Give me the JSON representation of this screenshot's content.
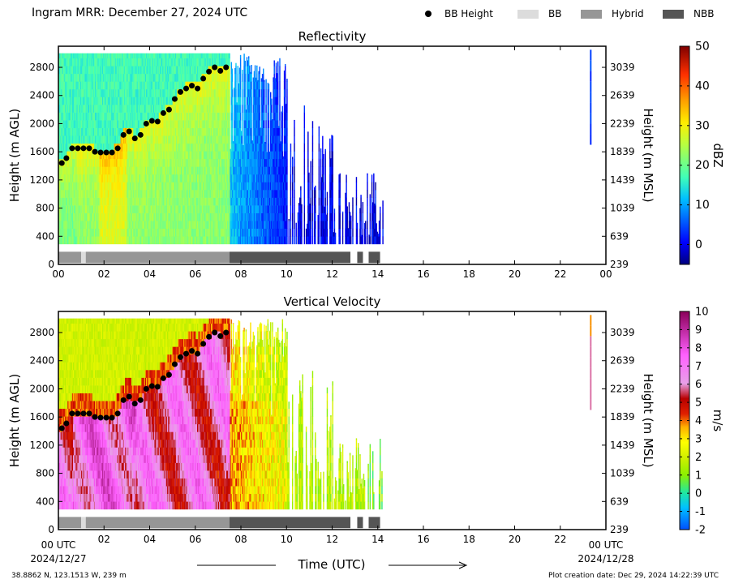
{
  "header": {
    "title": "Ingram MRR:  December 27, 2024 UTC"
  },
  "legend": [
    {
      "label": "BB Height",
      "kind": "dot",
      "color": "#000000"
    },
    {
      "label": "BB",
      "kind": "box",
      "color": "#dcdcdc"
    },
    {
      "label": "Hybrid",
      "kind": "box",
      "color": "#969696"
    },
    {
      "label": "NBB",
      "kind": "box",
      "color": "#555555"
    }
  ],
  "footer": {
    "location": "38.8862 N, 123.1513 W, 239 m",
    "created": "Plot creation date: Dec 29, 2024 14:22:39 UTC",
    "time_axis_label": "Time (UTC)",
    "start_label": "00 UTC",
    "start_date": "2024/12/27",
    "end_label": "00 UTC",
    "end_date": "2024/12/28"
  },
  "colors": {
    "bb": "#dcdcdc",
    "hybrid": "#969696",
    "nbb": "#555555"
  },
  "chart_data": [
    {
      "type": "heatmap",
      "title": "Reflectivity",
      "ylabel": "Height (m AGL)",
      "y2label": "Height (m MSL)",
      "xlim": [
        0,
        24
      ],
      "ylim": [
        0,
        3100
      ],
      "x_ticks": [
        "00",
        "02",
        "04",
        "06",
        "08",
        "10",
        "12",
        "14",
        "16",
        "18",
        "20",
        "22",
        "00"
      ],
      "y_ticks": [
        0,
        400,
        800,
        1200,
        1600,
        2000,
        2400,
        2800
      ],
      "y2_ticks": [
        "239",
        "639",
        "1039",
        "1439",
        "1839",
        "2239",
        "2639",
        "3039"
      ],
      "colorbar": {
        "label": "dBZ",
        "min": -5,
        "max": 50,
        "ticks": [
          0,
          10,
          20,
          30,
          40,
          50
        ]
      },
      "bb_height": {
        "x": [
          0.15,
          0.35,
          0.6,
          0.85,
          1.1,
          1.35,
          1.6,
          1.85,
          2.1,
          2.35,
          2.6,
          2.85,
          3.1,
          3.35,
          3.6,
          3.85,
          4.1,
          4.35,
          4.6,
          4.85,
          5.1,
          5.35,
          5.6,
          5.85,
          6.1,
          6.35,
          6.6,
          6.85,
          7.1,
          7.35
        ],
        "y": [
          1440,
          1510,
          1650,
          1650,
          1650,
          1650,
          1600,
          1590,
          1590,
          1590,
          1650,
          1840,
          1890,
          1790,
          1840,
          2000,
          2040,
          2030,
          2150,
          2200,
          2350,
          2450,
          2500,
          2540,
          2500,
          2640,
          2740,
          2800,
          2750,
          2800
        ]
      },
      "bb_type_segments": [
        {
          "start": 0,
          "end": 1.0,
          "type": "Hybrid"
        },
        {
          "start": 1.0,
          "end": 1.2,
          "type": "BB"
        },
        {
          "start": 1.2,
          "end": 7.5,
          "type": "Hybrid"
        },
        {
          "start": 7.5,
          "end": 12.8,
          "type": "NBB"
        },
        {
          "start": 13.1,
          "end": 13.35,
          "type": "NBB"
        },
        {
          "start": 13.6,
          "end": 14.1,
          "type": "NBB"
        }
      ]
    },
    {
      "type": "heatmap",
      "title": "Vertical Velocity",
      "ylabel": "Height (m AGL)",
      "y2label": "Height (m MSL)",
      "xlim": [
        0,
        24
      ],
      "ylim": [
        0,
        3100
      ],
      "x_ticks": [
        "",
        "02",
        "04",
        "06",
        "08",
        "10",
        "12",
        "14",
        "16",
        "18",
        "20",
        "22",
        ""
      ],
      "y_ticks": [
        0,
        400,
        800,
        1200,
        1600,
        2000,
        2400,
        2800
      ],
      "y2_ticks": [
        "239",
        "639",
        "1039",
        "1439",
        "1839",
        "2239",
        "2639",
        "3039"
      ],
      "colorbar": {
        "label": "m/s",
        "min": -2,
        "max": 10,
        "ticks": [
          -2,
          -1,
          0,
          1,
          2,
          3,
          4,
          5,
          6,
          7,
          8,
          9,
          10
        ]
      },
      "bb_height": {
        "x": [
          0.15,
          0.35,
          0.6,
          0.85,
          1.1,
          1.35,
          1.6,
          1.85,
          2.1,
          2.35,
          2.6,
          2.85,
          3.1,
          3.35,
          3.6,
          3.85,
          4.1,
          4.35,
          4.6,
          4.85,
          5.1,
          5.35,
          5.6,
          5.85,
          6.1,
          6.35,
          6.6,
          6.85,
          7.1,
          7.35
        ],
        "y": [
          1440,
          1510,
          1650,
          1650,
          1650,
          1650,
          1600,
          1590,
          1590,
          1590,
          1650,
          1840,
          1890,
          1790,
          1840,
          2000,
          2040,
          2030,
          2150,
          2200,
          2350,
          2450,
          2500,
          2540,
          2500,
          2640,
          2740,
          2800,
          2750,
          2800
        ]
      },
      "bb_type_segments": [
        {
          "start": 0,
          "end": 1.0,
          "type": "Hybrid"
        },
        {
          "start": 1.0,
          "end": 1.2,
          "type": "BB"
        },
        {
          "start": 1.2,
          "end": 7.5,
          "type": "Hybrid"
        },
        {
          "start": 7.5,
          "end": 12.8,
          "type": "NBB"
        },
        {
          "start": 13.1,
          "end": 13.35,
          "type": "NBB"
        },
        {
          "start": 13.6,
          "end": 14.1,
          "type": "NBB"
        }
      ]
    }
  ]
}
